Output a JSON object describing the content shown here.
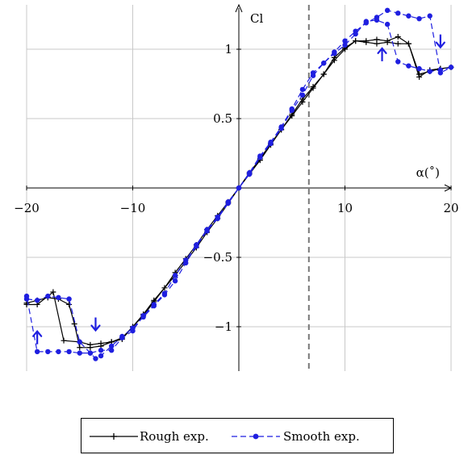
{
  "chart_data": {
    "type": "line",
    "xlabel": "α(˚)",
    "ylabel": "Cl",
    "xlim": [
      -20,
      20
    ],
    "ylim": [
      -1.32,
      1.32
    ],
    "x_ticks": [
      -20,
      -10,
      10,
      20
    ],
    "x_tick_labels": [
      "−20",
      "−10",
      "10",
      "20"
    ],
    "y_ticks": [
      1,
      0.5,
      -0.5,
      -1
    ],
    "y_tick_labels": [
      "1",
      "0.5",
      "−0.5",
      "−1"
    ],
    "grid": true,
    "vertical_marker_x": 6.6,
    "legend_position": "bottom",
    "series": [
      {
        "name": "Rough exp.",
        "color": "#000000",
        "style": "solid",
        "marker": "plus",
        "x": [
          -20,
          -19,
          -17.5,
          -16.5,
          -15,
          -14,
          -13,
          -12,
          -11,
          -10,
          -9,
          -8,
          -6,
          -4,
          -3,
          -2,
          -1,
          0,
          1,
          2,
          3,
          4,
          5,
          6,
          7,
          8,
          9,
          10,
          11,
          12,
          13,
          14,
          15,
          16,
          17,
          18,
          19,
          20,
          19,
          18,
          17,
          16,
          15,
          14,
          13,
          12,
          11,
          10,
          9,
          8,
          7,
          6,
          5,
          4,
          3,
          2,
          1,
          0,
          -1,
          -2,
          -3,
          -4,
          -5,
          -6,
          -7,
          -8,
          -9,
          -10,
          -11,
          -12,
          -13,
          -14,
          -15,
          -15.5,
          -16,
          -17,
          -18,
          -19,
          -20
        ],
        "y": [
          -0.84,
          -0.84,
          -0.75,
          -1.1,
          -1.11,
          -1.13,
          -1.12,
          -1.11,
          -1.09,
          -1.0,
          -0.91,
          -0.81,
          -0.63,
          -0.43,
          -0.32,
          -0.22,
          -0.11,
          0.0,
          0.1,
          0.2,
          0.31,
          0.42,
          0.52,
          0.62,
          0.72,
          0.82,
          0.92,
          1.0,
          1.06,
          1.06,
          1.07,
          1.06,
          1.09,
          1.04,
          0.8,
          0.85,
          0.86,
          0.87,
          0.86,
          0.84,
          0.82,
          1.04,
          1.04,
          1.05,
          1.04,
          1.05,
          1.06,
          1.01,
          0.94,
          0.82,
          0.73,
          0.64,
          0.53,
          0.42,
          0.32,
          0.21,
          0.11,
          0.0,
          -0.1,
          -0.2,
          -0.3,
          -0.41,
          -0.51,
          -0.61,
          -0.72,
          -0.82,
          -0.92,
          -1.0,
          -1.08,
          -1.11,
          -1.14,
          -1.15,
          -1.15,
          -0.98,
          -0.84,
          -0.8,
          -0.79,
          -0.81,
          -0.83
        ]
      },
      {
        "name": "Smooth exp.",
        "color": "#1f1fe0",
        "style": "dashed",
        "marker": "dot",
        "x": [
          -20,
          -19,
          -18,
          -17,
          -16,
          -15,
          -14,
          -13.5,
          -13,
          -12,
          -11,
          -10,
          -9,
          -8,
          -7,
          -6,
          -5,
          -4,
          -3,
          -2,
          -1,
          0,
          1,
          2,
          3,
          4,
          5,
          6,
          7,
          8,
          9,
          10,
          11,
          12,
          13,
          14,
          15,
          16,
          17,
          18,
          19,
          20,
          19,
          18,
          17,
          16,
          15,
          14,
          13,
          12,
          11,
          10,
          9,
          8,
          7,
          6,
          5,
          4,
          3,
          2,
          1,
          0,
          -1,
          -2,
          -3,
          -4,
          -5,
          -6,
          -7,
          -8,
          -9,
          -10,
          -11,
          -12,
          -13,
          -14,
          -15,
          -16,
          -17,
          -18,
          -19,
          -20
        ],
        "y": [
          -0.8,
          -0.81,
          -0.78,
          -0.79,
          -0.8,
          -1.11,
          -1.19,
          -1.23,
          -1.21,
          -1.14,
          -1.07,
          -1.01,
          -0.93,
          -0.85,
          -0.77,
          -0.67,
          -0.54,
          -0.42,
          -0.31,
          -0.22,
          -0.11,
          0.0,
          0.1,
          0.22,
          0.32,
          0.43,
          0.56,
          0.67,
          0.81,
          0.9,
          0.98,
          1.06,
          1.13,
          1.19,
          1.23,
          1.28,
          1.26,
          1.24,
          1.22,
          1.24,
          0.83,
          0.87,
          0.85,
          0.84,
          0.86,
          0.88,
          0.91,
          1.18,
          1.21,
          1.2,
          1.11,
          1.03,
          0.97,
          0.9,
          0.83,
          0.71,
          0.57,
          0.44,
          0.33,
          0.23,
          0.11,
          0.0,
          -0.1,
          -0.21,
          -0.3,
          -0.41,
          -0.52,
          -0.63,
          -0.76,
          -0.84,
          -0.92,
          -1.03,
          -1.08,
          -1.17,
          -1.17,
          -1.19,
          -1.19,
          -1.18,
          -1.18,
          -1.18,
          -1.18,
          -0.78
        ]
      }
    ],
    "annotations": [
      {
        "type": "arrow",
        "direction": "up",
        "x": -19,
        "y": -1.08
      },
      {
        "type": "arrow",
        "direction": "down",
        "x": -13.5,
        "y": -0.98
      },
      {
        "type": "arrow",
        "direction": "up",
        "x": 13.5,
        "y": 0.96
      },
      {
        "type": "arrow",
        "direction": "down",
        "x": 19,
        "y": 1.06
      }
    ]
  }
}
